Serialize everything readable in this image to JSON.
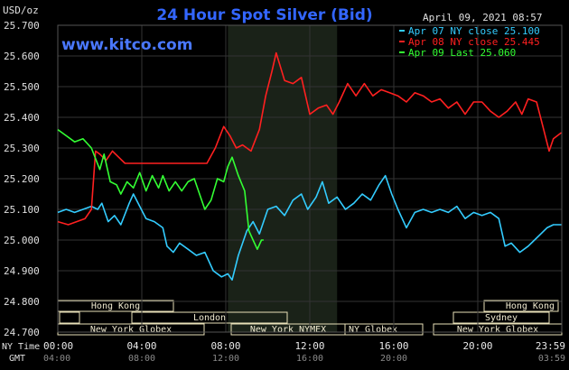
{
  "header": {
    "unit": "USD/oz",
    "title": "24 Hour Spot Silver (Bid)",
    "date": "April 09, 2021 08:57",
    "website": "www.kitco.com"
  },
  "legend": [
    {
      "label": "Apr 07 NY close 25.100",
      "color": "#33ccff"
    },
    {
      "label": "Apr 08 NY close 25.445",
      "color": "#ff2020"
    },
    {
      "label": "Apr 09 Last 25.060",
      "color": "#33ff33"
    }
  ],
  "axis": {
    "nyTimeLabel": "NY Time",
    "gmtLabel": "GMT",
    "xTicks": [
      "00:00",
      "04:00",
      "08:00",
      "12:00",
      "16:00",
      "20:00",
      "23:59"
    ],
    "gmtTicks": [
      "04:00",
      "08:00",
      "12:00",
      "16:00",
      "20:00",
      "03:59"
    ]
  },
  "sessions": {
    "row1": [
      {
        "label": "Hong Kong"
      },
      {
        "label": "Hong Kong"
      }
    ],
    "row2": [
      {
        "label": "London"
      },
      {
        "label": "Sydney"
      }
    ],
    "row3": [
      {
        "label": "New York Globex"
      },
      {
        "label": "New York NYMEX"
      },
      {
        "label": "NY Globex"
      },
      {
        "label": "New York Globex"
      }
    ]
  },
  "colors": {
    "background": "#000000",
    "grid": "#333333",
    "highlight": "#1a2218",
    "title": "#3366ff",
    "sessionBox": "#e8e0b8"
  },
  "chart_data": {
    "type": "line",
    "ylim": [
      24.7,
      25.7
    ],
    "yTicks": [
      "25.700",
      "25.600",
      "25.500",
      "25.400",
      "25.300",
      "25.200",
      "25.100",
      "25.000",
      "24.900",
      "24.800",
      "24.700"
    ],
    "xlim_hours": [
      0,
      24
    ],
    "series": [
      {
        "name": "Apr 07 NY close 25.100",
        "color": "#33ccff",
        "points": [
          [
            0,
            25.09
          ],
          [
            0.4,
            25.1
          ],
          [
            0.8,
            25.09
          ],
          [
            1.2,
            25.1
          ],
          [
            1.6,
            25.11
          ],
          [
            1.9,
            25.1
          ],
          [
            2.1,
            25.12
          ],
          [
            2.4,
            25.06
          ],
          [
            2.7,
            25.08
          ],
          [
            3.0,
            25.05
          ],
          [
            3.4,
            25.12
          ],
          [
            3.6,
            25.15
          ],
          [
            3.9,
            25.11
          ],
          [
            4.2,
            25.07
          ],
          [
            4.6,
            25.06
          ],
          [
            5.0,
            25.04
          ],
          [
            5.2,
            24.98
          ],
          [
            5.5,
            24.96
          ],
          [
            5.8,
            24.99
          ],
          [
            6.2,
            24.97
          ],
          [
            6.6,
            24.95
          ],
          [
            7.0,
            24.96
          ],
          [
            7.4,
            24.9
          ],
          [
            7.8,
            24.88
          ],
          [
            8.1,
            24.89
          ],
          [
            8.3,
            24.87
          ],
          [
            8.6,
            24.95
          ],
          [
            9.0,
            25.03
          ],
          [
            9.3,
            25.06
          ],
          [
            9.6,
            25.02
          ],
          [
            10.0,
            25.1
          ],
          [
            10.4,
            25.11
          ],
          [
            10.8,
            25.08
          ],
          [
            11.2,
            25.13
          ],
          [
            11.6,
            25.15
          ],
          [
            11.9,
            25.1
          ],
          [
            12.3,
            25.14
          ],
          [
            12.6,
            25.19
          ],
          [
            12.9,
            25.12
          ],
          [
            13.3,
            25.14
          ],
          [
            13.7,
            25.1
          ],
          [
            14.1,
            25.12
          ],
          [
            14.5,
            25.15
          ],
          [
            14.9,
            25.13
          ],
          [
            15.3,
            25.18
          ],
          [
            15.6,
            25.21
          ],
          [
            15.9,
            25.15
          ],
          [
            16.2,
            25.1
          ],
          [
            16.6,
            25.04
          ],
          [
            17.0,
            25.09
          ],
          [
            17.4,
            25.1
          ],
          [
            17.8,
            25.09
          ],
          [
            18.2,
            25.1
          ],
          [
            18.6,
            25.09
          ],
          [
            19.0,
            25.11
          ],
          [
            19.4,
            25.07
          ],
          [
            19.8,
            25.09
          ],
          [
            20.2,
            25.08
          ],
          [
            20.6,
            25.09
          ],
          [
            21.0,
            25.07
          ],
          [
            21.3,
            24.98
          ],
          [
            21.6,
            24.99
          ],
          [
            22.0,
            24.96
          ],
          [
            22.4,
            24.98
          ],
          [
            22.7,
            25.0
          ],
          [
            23.0,
            25.02
          ],
          [
            23.3,
            25.04
          ],
          [
            23.6,
            25.05
          ],
          [
            23.98,
            25.05
          ]
        ]
      },
      {
        "name": "Apr 08 NY close 25.445",
        "color": "#ff2020",
        "points": [
          [
            0,
            25.06
          ],
          [
            0.5,
            25.05
          ],
          [
            0.9,
            25.06
          ],
          [
            1.3,
            25.07
          ],
          [
            1.6,
            25.1
          ],
          [
            1.8,
            25.29
          ],
          [
            2.0,
            25.28
          ],
          [
            2.3,
            25.26
          ],
          [
            2.6,
            25.29
          ],
          [
            2.9,
            25.27
          ],
          [
            3.2,
            25.25
          ],
          [
            3.6,
            25.25
          ],
          [
            4.0,
            25.25
          ],
          [
            4.6,
            25.25
          ],
          [
            5.2,
            25.25
          ],
          [
            5.8,
            25.25
          ],
          [
            6.4,
            25.25
          ],
          [
            6.8,
            25.25
          ],
          [
            7.1,
            25.25
          ],
          [
            7.5,
            25.3
          ],
          [
            7.9,
            25.37
          ],
          [
            8.2,
            25.34
          ],
          [
            8.5,
            25.3
          ],
          [
            8.8,
            25.31
          ],
          [
            9.2,
            25.29
          ],
          [
            9.6,
            25.36
          ],
          [
            9.9,
            25.47
          ],
          [
            10.2,
            25.55
          ],
          [
            10.4,
            25.61
          ],
          [
            10.8,
            25.52
          ],
          [
            11.2,
            25.51
          ],
          [
            11.6,
            25.53
          ],
          [
            12.0,
            25.41
          ],
          [
            12.4,
            25.43
          ],
          [
            12.8,
            25.44
          ],
          [
            13.1,
            25.41
          ],
          [
            13.4,
            25.45
          ],
          [
            13.8,
            25.51
          ],
          [
            14.2,
            25.47
          ],
          [
            14.6,
            25.51
          ],
          [
            15.0,
            25.47
          ],
          [
            15.4,
            25.49
          ],
          [
            15.8,
            25.48
          ],
          [
            16.2,
            25.47
          ],
          [
            16.6,
            25.45
          ],
          [
            17.0,
            25.48
          ],
          [
            17.4,
            25.47
          ],
          [
            17.8,
            25.45
          ],
          [
            18.2,
            25.46
          ],
          [
            18.6,
            25.43
          ],
          [
            19.0,
            25.45
          ],
          [
            19.4,
            25.41
          ],
          [
            19.8,
            25.45
          ],
          [
            20.2,
            25.45
          ],
          [
            20.6,
            25.42
          ],
          [
            21.0,
            25.4
          ],
          [
            21.4,
            25.42
          ],
          [
            21.8,
            25.45
          ],
          [
            22.1,
            25.41
          ],
          [
            22.4,
            25.46
          ],
          [
            22.8,
            25.45
          ],
          [
            23.1,
            25.37
          ],
          [
            23.4,
            25.29
          ],
          [
            23.6,
            25.33
          ],
          [
            23.98,
            25.35
          ]
        ]
      },
      {
        "name": "Apr 09 Last 25.060",
        "color": "#33ff33",
        "points": [
          [
            0,
            25.36
          ],
          [
            0.4,
            25.34
          ],
          [
            0.8,
            25.32
          ],
          [
            1.2,
            25.33
          ],
          [
            1.6,
            25.3
          ],
          [
            2.0,
            25.23
          ],
          [
            2.2,
            25.28
          ],
          [
            2.5,
            25.19
          ],
          [
            2.8,
            25.18
          ],
          [
            3.0,
            25.15
          ],
          [
            3.3,
            25.19
          ],
          [
            3.6,
            25.17
          ],
          [
            3.9,
            25.22
          ],
          [
            4.2,
            25.16
          ],
          [
            4.5,
            25.21
          ],
          [
            4.8,
            25.17
          ],
          [
            5.0,
            25.21
          ],
          [
            5.3,
            25.16
          ],
          [
            5.6,
            25.19
          ],
          [
            5.9,
            25.16
          ],
          [
            6.2,
            25.19
          ],
          [
            6.5,
            25.2
          ],
          [
            6.8,
            25.14
          ],
          [
            7.0,
            25.1
          ],
          [
            7.3,
            25.13
          ],
          [
            7.6,
            25.2
          ],
          [
            7.9,
            25.19
          ],
          [
            8.1,
            25.24
          ],
          [
            8.3,
            25.27
          ],
          [
            8.6,
            25.21
          ],
          [
            8.9,
            25.16
          ],
          [
            9.1,
            25.03
          ],
          [
            9.3,
            25.0
          ],
          [
            9.5,
            24.97
          ],
          [
            9.7,
            25.0
          ],
          [
            9.8,
            25.0
          ]
        ]
      }
    ]
  }
}
